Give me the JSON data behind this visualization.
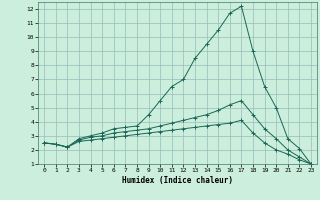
{
  "xlabel": "Humidex (Indice chaleur)",
  "background_color": "#cceedd",
  "grid_color": "#99bbbb",
  "line_color": "#1a6655",
  "xlim": [
    -0.5,
    23.5
  ],
  "ylim": [
    1,
    12.5
  ],
  "xticks": [
    0,
    1,
    2,
    3,
    4,
    5,
    6,
    7,
    8,
    9,
    10,
    11,
    12,
    13,
    14,
    15,
    16,
    17,
    18,
    19,
    20,
    21,
    22,
    23
  ],
  "yticks": [
    1,
    2,
    3,
    4,
    5,
    6,
    7,
    8,
    9,
    10,
    11,
    12
  ],
  "series": [
    {
      "x": [
        0,
        1,
        2,
        3,
        4,
        5,
        6,
        7,
        8,
        9,
        10,
        11,
        12,
        13,
        14,
        15,
        16,
        17,
        18,
        19,
        20,
        21,
        22,
        23
      ],
      "y": [
        2.5,
        2.4,
        2.2,
        2.8,
        3.0,
        3.2,
        3.5,
        3.6,
        3.7,
        4.5,
        5.5,
        6.5,
        7.0,
        8.5,
        9.5,
        10.5,
        11.7,
        12.2,
        9.0,
        6.5,
        5.0,
        2.8,
        2.1,
        1.0
      ]
    },
    {
      "x": [
        0,
        1,
        2,
        3,
        4,
        5,
        6,
        7,
        8,
        9,
        10,
        11,
        12,
        13,
        14,
        15,
        16,
        17,
        18,
        19,
        20,
        21,
        22,
        23
      ],
      "y": [
        2.5,
        2.4,
        2.2,
        2.7,
        2.9,
        3.0,
        3.2,
        3.3,
        3.4,
        3.5,
        3.7,
        3.9,
        4.1,
        4.3,
        4.5,
        4.8,
        5.2,
        5.5,
        4.5,
        3.5,
        2.8,
        2.0,
        1.5,
        1.0
      ]
    },
    {
      "x": [
        0,
        1,
        2,
        3,
        4,
        5,
        6,
        7,
        8,
        9,
        10,
        11,
        12,
        13,
        14,
        15,
        16,
        17,
        18,
        19,
        20,
        21,
        22,
        23
      ],
      "y": [
        2.5,
        2.4,
        2.2,
        2.6,
        2.7,
        2.8,
        2.9,
        3.0,
        3.1,
        3.2,
        3.3,
        3.4,
        3.5,
        3.6,
        3.7,
        3.8,
        3.9,
        4.1,
        3.2,
        2.5,
        2.0,
        1.7,
        1.3,
        1.0
      ]
    }
  ]
}
